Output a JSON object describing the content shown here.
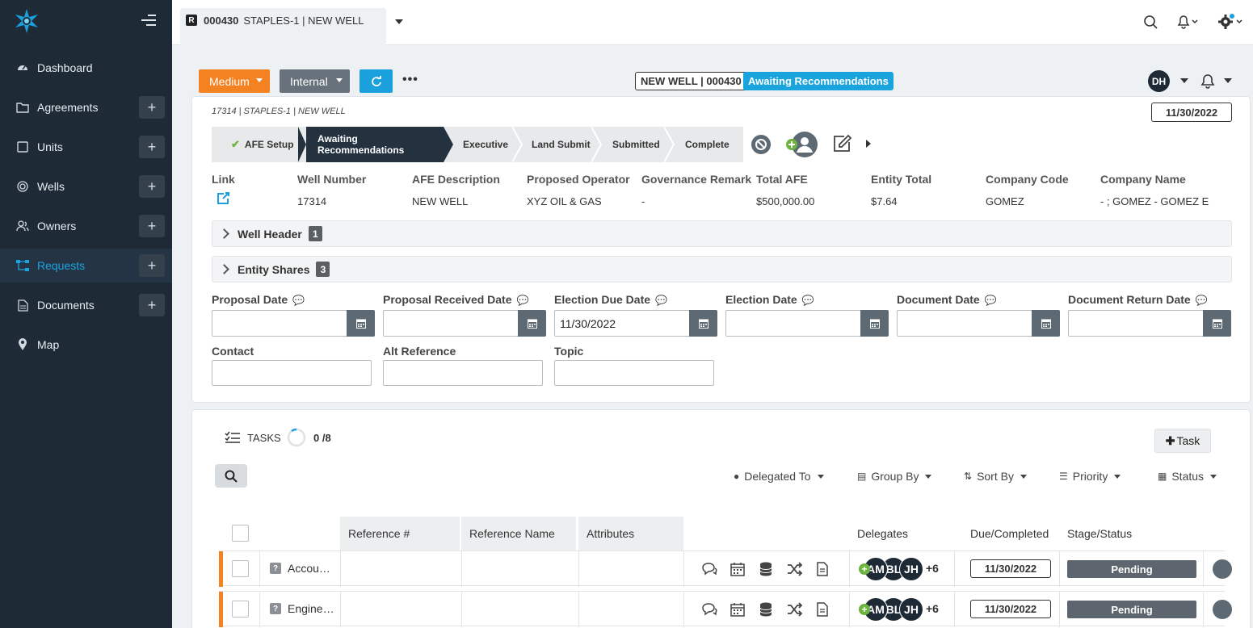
{
  "sidebar": {
    "items": [
      {
        "label": "Dashboard",
        "icon": "dashboard-icon",
        "has_add": false,
        "active": false
      },
      {
        "label": "Agreements",
        "icon": "folder-icon",
        "has_add": true,
        "active": false
      },
      {
        "label": "Units",
        "icon": "square-icon",
        "has_add": true,
        "active": false
      },
      {
        "label": "Wells",
        "icon": "target-icon",
        "has_add": true,
        "active": false
      },
      {
        "label": "Owners",
        "icon": "users-icon",
        "has_add": true,
        "active": false
      },
      {
        "label": "Requests",
        "icon": "sitemap-icon",
        "has_add": true,
        "active": true
      },
      {
        "label": "Documents",
        "icon": "document-icon",
        "has_add": true,
        "active": false
      },
      {
        "label": "Map",
        "icon": "map-pin-icon",
        "has_add": false,
        "active": false
      }
    ],
    "add_symbol": "+"
  },
  "topbar": {
    "tab": {
      "badge": "R",
      "number": "000430",
      "title": "STAPLES-1 | NEW WELL"
    }
  },
  "header": {
    "priority": "Medium",
    "visibility": "Internal",
    "more": "•••",
    "well_badge": "NEW WELL | 000430",
    "status_badge": "Awaiting Recommendations",
    "user_initials": "DH"
  },
  "card": {
    "breadcrumb": "17314 | STAPLES-1 | NEW WELL",
    "date": "11/30/2022",
    "steps": [
      {
        "label": "AFE Setup",
        "done": true
      },
      {
        "label": "Awaiting Recommendations",
        "active": true
      },
      {
        "label": "Executive"
      },
      {
        "label": "Land Submit"
      },
      {
        "label": "Submitted"
      },
      {
        "label": "Complete"
      }
    ],
    "info": [
      {
        "label": "Link",
        "value": ""
      },
      {
        "label": "Well Number",
        "value": "17314"
      },
      {
        "label": "AFE Description",
        "value": "NEW WELL"
      },
      {
        "label": "Proposed Operator",
        "value": "XYZ OIL & GAS"
      },
      {
        "label": "Governance Remark",
        "value": "-"
      },
      {
        "label": "Total AFE",
        "value": "$500,000.00"
      },
      {
        "label": "Entity Total",
        "value": "$7.64"
      },
      {
        "label": "Company Code",
        "value": "GOMEZ"
      },
      {
        "label": "Company Name",
        "value": " - ; GOMEZ - GOMEZ EXI"
      }
    ],
    "sections": [
      {
        "label": "Well Header",
        "count": "1"
      },
      {
        "label": "Entity Shares",
        "count": "3"
      }
    ],
    "date_fields": [
      {
        "label": "Proposal Date",
        "value": ""
      },
      {
        "label": "Proposal Received Date",
        "value": ""
      },
      {
        "label": "Election Due Date",
        "value": "11/30/2022"
      },
      {
        "label": "Election Date",
        "value": ""
      },
      {
        "label": "Document Date",
        "value": ""
      },
      {
        "label": "Document Return Date",
        "value": ""
      }
    ],
    "text_fields": [
      {
        "label": "Contact",
        "value": ""
      },
      {
        "label": "Alt Reference",
        "value": ""
      },
      {
        "label": "Topic",
        "value": ""
      }
    ]
  },
  "tasks": {
    "title": "TASKS",
    "progress": "0 /8",
    "progress_fraction": 0,
    "add_label": "Task",
    "filters": [
      "Delegated To",
      "Group By",
      "Sort By",
      "Priority",
      "Status"
    ],
    "columns": [
      "Reference #",
      "Reference Name",
      "Attributes",
      "Delegates",
      "Due/Completed",
      "Stage/Status"
    ],
    "rows": [
      {
        "name": "Accou…",
        "delegates": [
          "AM",
          "BL",
          "JH"
        ],
        "more": "+6",
        "due": "11/30/2022",
        "status": "Pending"
      },
      {
        "name": "Engine…",
        "delegates": [
          "AM",
          "BL",
          "JH"
        ],
        "more": "+6",
        "due": "11/30/2022",
        "status": "Pending"
      }
    ]
  },
  "colors": {
    "sidebar_bg": "#1e2a36",
    "accent_blue": "#1aa0dc",
    "priority_orange": "#f48221",
    "status_gray": "#5d666e"
  }
}
